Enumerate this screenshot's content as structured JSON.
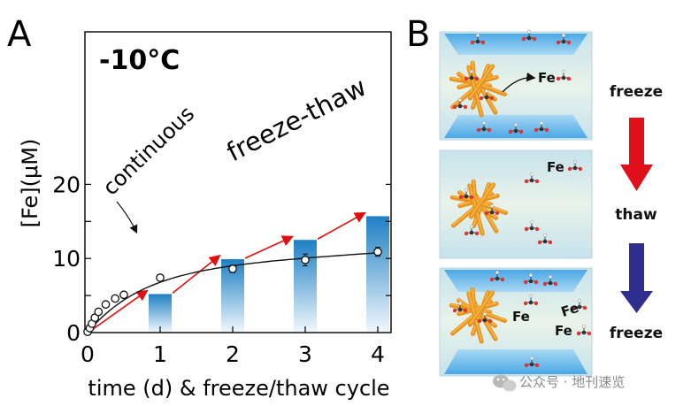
{
  "panel_a": {
    "letter": "A",
    "temperature_label": "-10°C",
    "continuous_label": "continuous",
    "freeze_thaw_label": "freeze-thaw"
  },
  "panel_b": {
    "letter": "B",
    "steps": [
      "freeze",
      "thaw",
      "freeze"
    ],
    "fe_label": "Fe",
    "arrow_colors": {
      "freeze_to_thaw": "#e0101a",
      "thaw_to_freeze": "#2e2e8f"
    }
  },
  "watermark": "公众号 · 地刊速览",
  "colors": {
    "bar_top": "#1e7fc4",
    "bar_bottom": "#f2f8fd",
    "red_arrow": "#e01010",
    "fit_line": "#111111"
  },
  "chart_data": {
    "type": "bar",
    "title": "",
    "xlabel": "time (d) & freeze/thaw cycle",
    "ylabel": "[Fe](μM)",
    "xlim": [
      0,
      4.2
    ],
    "ylim": [
      0,
      20
    ],
    "x_ticks": [
      "0",
      "1",
      "2",
      "3",
      "4"
    ],
    "y_ticks": [
      "0",
      "10",
      "20"
    ],
    "grid": false,
    "series": [
      {
        "name": "freeze-thaw",
        "type": "bar",
        "x": [
          1,
          2,
          3,
          4
        ],
        "values": [
          5.2,
          9.9,
          12.5,
          15.7
        ]
      },
      {
        "name": "continuous",
        "type": "scatter",
        "x": [
          0,
          0.03,
          0.06,
          0.1,
          0.15,
          0.25,
          0.38,
          0.5,
          1,
          2,
          3,
          4
        ],
        "values": [
          0.1,
          0.6,
          1.2,
          2.0,
          2.8,
          3.8,
          4.6,
          5.1,
          7.4,
          8.6,
          9.8,
          10.9
        ],
        "error": [
          0,
          0,
          0,
          0,
          0,
          0,
          0,
          0,
          0.4,
          0.5,
          0.8,
          0.6
        ]
      }
    ]
  }
}
